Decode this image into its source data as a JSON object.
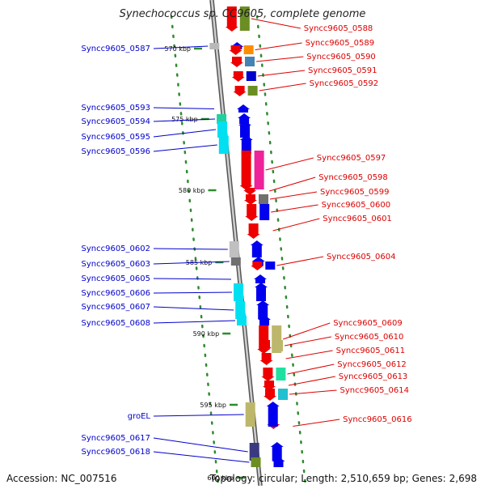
{
  "title": "Synechococcus sp. CC9605, complete genome",
  "footer": {
    "accession_label": "Accession:",
    "accession": "NC_007516",
    "topology_label": "Topology:",
    "topology": "circular;",
    "length_label": "Length:",
    "length": "2,510,659 bp;",
    "genes_label": "Genes:",
    "genes": "2,698"
  },
  "colors": {
    "forward_label": "#0000cc",
    "reverse_label": "#dd0000",
    "backbone": "#888888",
    "tick": "#2e8b2e"
  },
  "ticks": [
    "570 kbp",
    "575 kbp",
    "580 kbp",
    "585 kbp",
    "590 kbp",
    "595 kbp",
    "600 kbp"
  ],
  "genes": [
    {
      "name": "Syncc9605_0587",
      "strand": "forward",
      "arrow": "#0000ee",
      "cog": "#b8b8b8"
    },
    {
      "name": "Syncc9605_0588",
      "strand": "reverse",
      "arrow": "#ee0000",
      "cog": "#6b8e23"
    },
    {
      "name": "Syncc9605_0589",
      "strand": "reverse",
      "arrow": "#ee0000",
      "cog": "#ff8c00"
    },
    {
      "name": "Syncc9605_0590",
      "strand": "reverse",
      "arrow": "#ee0000",
      "cog": "#4682b4"
    },
    {
      "name": "Syncc9605_0591",
      "strand": "reverse",
      "arrow": "#ee0000",
      "cog": "#0000cc"
    },
    {
      "name": "Syncc9605_0592",
      "strand": "reverse",
      "arrow": "#ee0000",
      "cog": "#6b8e23"
    },
    {
      "name": "Syncc9605_0593",
      "strand": "forward",
      "arrow": "#0000ee",
      "cog": ""
    },
    {
      "name": "Syncc9605_0594",
      "strand": "forward",
      "arrow": "#0000ee",
      "cog": "#20d0a0"
    },
    {
      "name": "Syncc9605_0595",
      "strand": "forward",
      "arrow": "#0000ee",
      "cog": "#00e0f0"
    },
    {
      "name": "Syncc9605_0596",
      "strand": "forward",
      "arrow": "#0000ee",
      "cog": "#00e0f0"
    },
    {
      "name": "Syncc9605_0597",
      "strand": "reverse",
      "arrow": "#ee0000",
      "cog": "#ee2299"
    },
    {
      "name": "Syncc9605_0598",
      "strand": "reverse",
      "arrow": "#ee0000",
      "cog": ""
    },
    {
      "name": "Syncc9605_0599",
      "strand": "reverse",
      "arrow": "#ee0000",
      "cog": "#707070"
    },
    {
      "name": "Syncc9605_0600",
      "strand": "reverse",
      "arrow": "#ee0000",
      "cog": "#0000ee"
    },
    {
      "name": "Syncc9605_0601",
      "strand": "reverse",
      "arrow": "#ee0000",
      "cog": ""
    },
    {
      "name": "Syncc9605_0602",
      "strand": "forward",
      "arrow": "#0000ee",
      "cog": "#c0c0c0"
    },
    {
      "name": "Syncc9605_0603",
      "strand": "forward",
      "arrow": "#0000ee",
      "cog": "#707070"
    },
    {
      "name": "Syncc9605_0604",
      "strand": "reverse",
      "arrow": "#ee0000",
      "cog": "#0000ee"
    },
    {
      "name": "Syncc9605_0605",
      "strand": "forward",
      "arrow": "#0000ee",
      "cog": ""
    },
    {
      "name": "Syncc9605_0606",
      "strand": "forward",
      "arrow": "#0000ee",
      "cog": "#00e0f0"
    },
    {
      "name": "Syncc9605_0607",
      "strand": "forward",
      "arrow": "#0000ee",
      "cog": "#00e0f0"
    },
    {
      "name": "Syncc9605_0608",
      "strand": "forward",
      "arrow": "#0000ee",
      "cog": "#00e0f0"
    },
    {
      "name": "Syncc9605_0609",
      "strand": "reverse",
      "arrow": "#ee0000",
      "cog": "#bdb76b"
    },
    {
      "name": "Syncc9605_0610",
      "strand": "reverse",
      "arrow": "#ee0000",
      "cog": "#bdb76b"
    },
    {
      "name": "Syncc9605_0611",
      "strand": "reverse",
      "arrow": "#ee0000",
      "cog": ""
    },
    {
      "name": "Syncc9605_0612",
      "strand": "reverse",
      "arrow": "#ee0000",
      "cog": "#20e0a0"
    },
    {
      "name": "Syncc9605_0613",
      "strand": "reverse",
      "arrow": "#ee0000",
      "cog": ""
    },
    {
      "name": "Syncc9605_0614",
      "strand": "reverse",
      "arrow": "#ee0000",
      "cog": "#20c0d0"
    },
    {
      "name": "Syncc9605_0616",
      "strand": "reverse",
      "arrow": "#ee0000",
      "cog": ""
    },
    {
      "name": "groEL",
      "strand": "forward",
      "arrow": "#0000ee",
      "cog": "#bdb76b"
    },
    {
      "name": "Syncc9605_0617",
      "strand": "forward",
      "arrow": "#0000ee",
      "cog": "#3a3a80"
    },
    {
      "name": "Syncc9605_0618",
      "strand": "forward",
      "arrow": "#0000ee",
      "cog": "#6b8e23"
    }
  ]
}
